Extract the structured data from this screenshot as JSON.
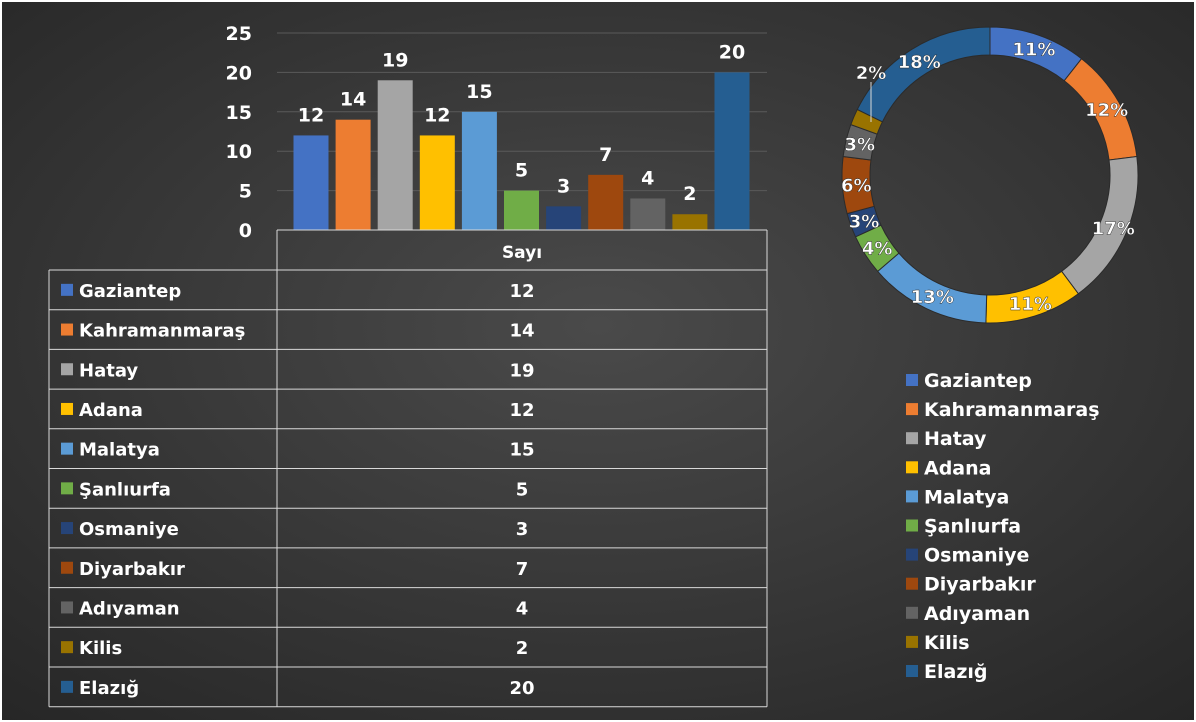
{
  "chart_data": [
    {
      "type": "bar",
      "series_label": "Sayı",
      "categories": [
        "Gaziantep",
        "Kahramanmaraş",
        "Hatay",
        "Adana",
        "Malatya",
        "Şanlıurfa",
        "Osmaniye",
        "Diyarbakır",
        "Adıyaman",
        "Kilis",
        "Elazığ"
      ],
      "values": [
        12,
        14,
        19,
        12,
        15,
        5,
        3,
        7,
        4,
        2,
        20
      ],
      "y_ticks": [
        "0",
        "5",
        "10",
        "15",
        "20",
        "25"
      ],
      "ylim": [
        0,
        25
      ],
      "data_table": true,
      "grid": true
    },
    {
      "type": "pie",
      "style": "donut",
      "categories": [
        "Gaziantep",
        "Kahramanmaraş",
        "Hatay",
        "Adana",
        "Malatya",
        "Şanlıurfa",
        "Osmaniye",
        "Diyarbakır",
        "Adıyaman",
        "Kilis",
        "Elazığ"
      ],
      "values": [
        12,
        14,
        19,
        12,
        15,
        5,
        3,
        7,
        4,
        2,
        20
      ],
      "percent_labels": [
        "11%",
        "12%",
        "17%",
        "11%",
        "13%",
        "4%",
        "3%",
        "6%",
        "3%",
        "2%",
        "18%"
      ],
      "legend_position": "bottom"
    }
  ],
  "colors": [
    "#4472C4",
    "#ED7D31",
    "#A5A5A5",
    "#FFC000",
    "#5B9BD5",
    "#70AD47",
    "#264478",
    "#9E480E",
    "#636363",
    "#997300",
    "#255E91"
  ],
  "background": "#2e2e2e"
}
